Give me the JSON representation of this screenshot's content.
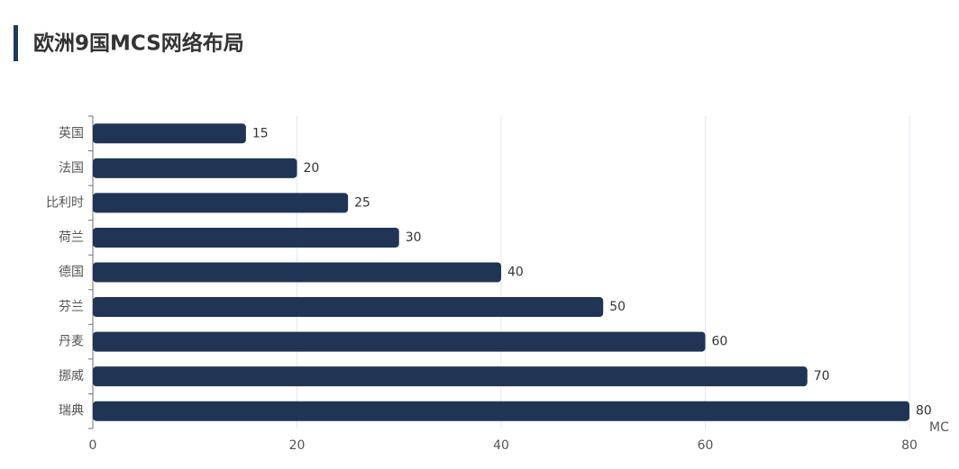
{
  "chart_data": {
    "type": "bar",
    "orientation": "horizontal",
    "title": "欧洲9国MCS网络布局",
    "categories": [
      "英国",
      "法国",
      "比利时",
      "荷兰",
      "德国",
      "芬兰",
      "丹麦",
      "挪威",
      "瑞典"
    ],
    "values": [
      15,
      20,
      25,
      30,
      40,
      50,
      60,
      70,
      80
    ],
    "color": "#203456",
    "xlim": [
      0,
      80
    ],
    "xticks": [
      0,
      20,
      40,
      60,
      80
    ],
    "grid": true,
    "x_label": "MC"
  }
}
